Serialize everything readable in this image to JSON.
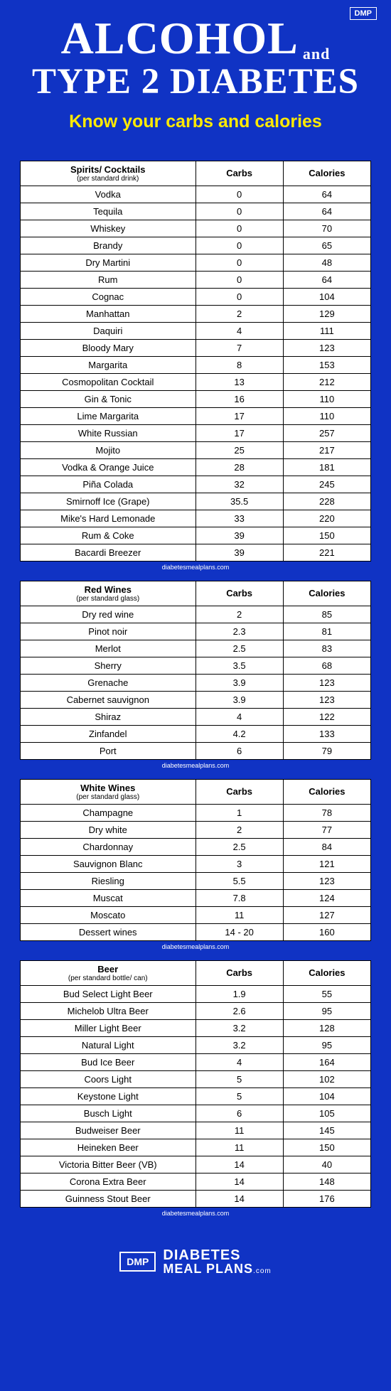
{
  "colors": {
    "background": "#1033c4",
    "title": "#ffffff",
    "subtitle": "#ffea00",
    "table_bg": "#ffffff",
    "border": "#000000"
  },
  "header": {
    "logo": "DMP",
    "title_word1": "ALCOHOL",
    "title_and": "and",
    "title_word2": "TYPE 2 DIABETES",
    "subtitle": "Know your carbs and calories"
  },
  "caption": "diabetesmealplans.com",
  "footer": {
    "logo": "DMP",
    "line1": "DIABETES",
    "line2": "MEAL PLANS",
    "suffix": ".com"
  },
  "tables": [
    {
      "name": "Spirits/ Cocktails",
      "per": "(per standard drink)",
      "columns": [
        "Carbs",
        "Calories"
      ],
      "rows": [
        [
          "Vodka",
          "0",
          "64"
        ],
        [
          "Tequila",
          "0",
          "64"
        ],
        [
          "Whiskey",
          "0",
          "70"
        ],
        [
          "Brandy",
          "0",
          "65"
        ],
        [
          "Dry Martini",
          "0",
          "48"
        ],
        [
          "Rum",
          "0",
          "64"
        ],
        [
          "Cognac",
          "0",
          "104"
        ],
        [
          "Manhattan",
          "2",
          "129"
        ],
        [
          "Daquiri",
          "4",
          "111"
        ],
        [
          "Bloody Mary",
          "7",
          "123"
        ],
        [
          "Margarita",
          "8",
          "153"
        ],
        [
          "Cosmopolitan Cocktail",
          "13",
          "212"
        ],
        [
          "Gin & Tonic",
          "16",
          "110"
        ],
        [
          "Lime Margarita",
          "17",
          "110"
        ],
        [
          "White Russian",
          "17",
          "257"
        ],
        [
          "Mojito",
          "25",
          "217"
        ],
        [
          "Vodka & Orange Juice",
          "28",
          "181"
        ],
        [
          "Piña Colada",
          "32",
          "245"
        ],
        [
          "Smirnoff Ice (Grape)",
          "35.5",
          "228"
        ],
        [
          "Mike's Hard Lemonade",
          "33",
          "220"
        ],
        [
          "Rum & Coke",
          "39",
          "150"
        ],
        [
          "Bacardi Breezer",
          "39",
          "221"
        ]
      ]
    },
    {
      "name": "Red Wines",
      "per": "(per standard glass)",
      "columns": [
        "Carbs",
        "Calories"
      ],
      "rows": [
        [
          "Dry red wine",
          "2",
          "85"
        ],
        [
          "Pinot noir",
          "2.3",
          "81"
        ],
        [
          "Merlot",
          "2.5",
          "83"
        ],
        [
          "Sherry",
          "3.5",
          "68"
        ],
        [
          "Grenache",
          "3.9",
          "123"
        ],
        [
          "Cabernet sauvignon",
          "3.9",
          "123"
        ],
        [
          "Shiraz",
          "4",
          "122"
        ],
        [
          "Zinfandel",
          "4.2",
          "133"
        ],
        [
          "Port",
          "6",
          "79"
        ]
      ]
    },
    {
      "name": "White Wines",
      "per": "(per standard glass)",
      "columns": [
        "Carbs",
        "Calories"
      ],
      "rows": [
        [
          "Champagne",
          "1",
          "78"
        ],
        [
          "Dry white",
          "2",
          "77"
        ],
        [
          "Chardonnay",
          "2.5",
          "84"
        ],
        [
          "Sauvignon Blanc",
          "3",
          "121"
        ],
        [
          "Riesling",
          "5.5",
          "123"
        ],
        [
          "Muscat",
          "7.8",
          "124"
        ],
        [
          "Moscato",
          "11",
          "127"
        ],
        [
          "Dessert wines",
          "14 - 20",
          "160"
        ]
      ]
    },
    {
      "name": "Beer",
      "per": "(per standard bottle/ can)",
      "columns": [
        "Carbs",
        "Calories"
      ],
      "rows": [
        [
          "Bud Select Light Beer",
          "1.9",
          "55"
        ],
        [
          "Michelob Ultra Beer",
          "2.6",
          "95"
        ],
        [
          "Miller Light Beer",
          "3.2",
          "128"
        ],
        [
          "Natural Light",
          "3.2",
          "95"
        ],
        [
          "Bud Ice Beer",
          "4",
          "164"
        ],
        [
          "Coors Light",
          "5",
          "102"
        ],
        [
          "Keystone Light",
          "5",
          "104"
        ],
        [
          "Busch Light",
          "6",
          "105"
        ],
        [
          "Budweiser Beer",
          "11",
          "145"
        ],
        [
          "Heineken Beer",
          "11",
          "150"
        ],
        [
          "Victoria Bitter Beer (VB)",
          "14",
          "40"
        ],
        [
          "Corona Extra Beer",
          "14",
          "148"
        ],
        [
          "Guinness Stout Beer",
          "14",
          "176"
        ]
      ]
    }
  ]
}
